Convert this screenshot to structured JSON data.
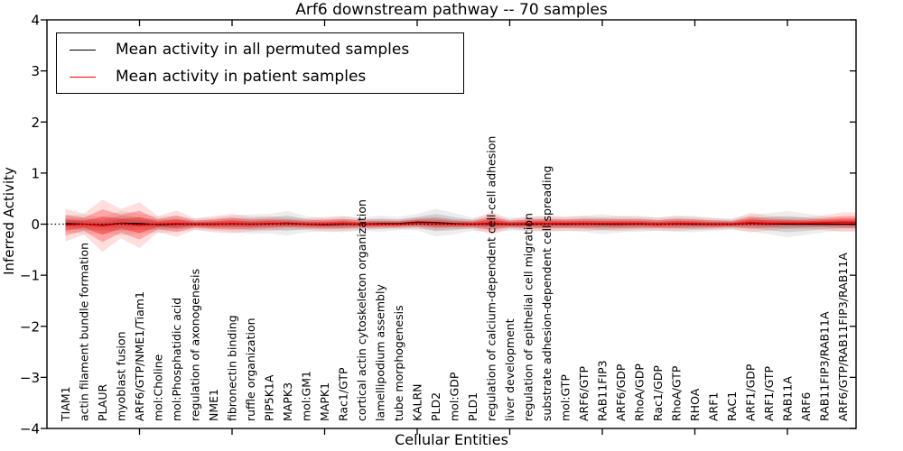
{
  "title": "Arf6 downstream pathway -- 70 samples",
  "legend": {
    "items": [
      {
        "label": "Mean activity in all permuted samples",
        "color": "#000000"
      },
      {
        "label": "Mean activity in patient samples",
        "color": "#ff0000"
      }
    ]
  },
  "colors": {
    "permuted_line": "#000000",
    "patient_line": "#ff0000",
    "permuted_band": "#000000",
    "patient_band": "#ff0000",
    "axis": "#000000",
    "background": "#ffffff"
  },
  "chart_data": {
    "type": "line",
    "title": "Arf6 downstream pathway -- 70 samples",
    "xlabel": "Cellular Entities",
    "ylabel": "Inferred Activity",
    "ylim": [
      -4,
      4
    ],
    "yticks": [
      4,
      3,
      2,
      1,
      0,
      -1,
      -2,
      -3,
      -4
    ],
    "xticks_major": [
      5,
      10,
      15,
      20,
      25,
      30,
      35,
      40
    ],
    "grid": false,
    "legend_position": "upper left",
    "zero_line": {
      "value": 0,
      "style": "dotted",
      "color": "#000000"
    },
    "categories": [
      "TIAM1",
      "actin filament bundle formation",
      "PLAUR",
      "myoblast fusion",
      "ARF6/GTP/NME1/Tiam1",
      "mol:Choline",
      "mol:Phosphatidic acid",
      "regulation of axonogenesis",
      "NME1",
      "fibronectin binding",
      "ruffle organization",
      "PIP5K1A",
      "MAPK3",
      "mol:GM1",
      "MAPK1",
      "Rac1/GTP",
      "cortical actin cytoskeleton organization",
      "lamellipodium assembly",
      "tube morphogenesis",
      "KALRN",
      "PLD2",
      "mol:GDP",
      "PLD1",
      "regulation of calcium-dependent cell-cell adhesion",
      "liver development",
      "regulation of epithelial cell migration",
      "substrate adhesion-dependent cell spreading",
      "mol:GTP",
      "ARF6/GTP",
      "RAB11FIP3",
      "ARF6/GDP",
      "RhoA/GDP",
      "Rac1/GDP",
      "RhoA/GTP",
      "RHOA",
      "ARF1",
      "RAC1",
      "ARF1/GDP",
      "ARF1/GTP",
      "RAB11A",
      "ARF6",
      "RAB11FIP3/RAB11A",
      "ARF6/GTP/RAB11FIP3/RAB11A"
    ],
    "series": [
      {
        "name": "Mean activity in all permuted samples",
        "style": "solid",
        "values": [
          0.01,
          0.0,
          -0.02,
          0.02,
          0.01,
          -0.01,
          0.0,
          0.0,
          0.0,
          0.01,
          0.0,
          0.01,
          0.02,
          0.0,
          -0.01,
          0.0,
          0.0,
          0.01,
          0.01,
          0.04,
          0.03,
          0.01,
          0.0,
          0.01,
          0.0,
          0.0,
          0.01,
          0.0,
          0.01,
          0.0,
          0.0,
          0.01,
          0.0,
          0.01,
          0.0,
          0.0,
          0.0,
          0.02,
          0.01,
          0.0,
          0.0,
          0.0,
          0.0
        ],
        "band_halfwidth": [
          0.1,
          0.12,
          0.1,
          0.15,
          0.12,
          0.1,
          0.1,
          0.07,
          0.08,
          0.1,
          0.12,
          0.12,
          0.15,
          0.1,
          0.08,
          0.1,
          0.08,
          0.1,
          0.08,
          0.1,
          0.17,
          0.13,
          0.08,
          0.1,
          0.08,
          0.08,
          0.1,
          0.08,
          0.1,
          0.12,
          0.1,
          0.1,
          0.08,
          0.1,
          0.1,
          0.08,
          0.07,
          0.1,
          0.13,
          0.16,
          0.13,
          0.1,
          0.08
        ]
      },
      {
        "name": "Mean activity in patient samples",
        "style": "solid",
        "values": [
          -0.02,
          0.0,
          -0.03,
          0.01,
          -0.02,
          0.0,
          0.01,
          0.0,
          0.0,
          0.01,
          0.0,
          0.01,
          0.01,
          0.0,
          0.0,
          0.01,
          0.0,
          0.0,
          0.0,
          0.02,
          0.01,
          0.0,
          0.0,
          0.02,
          0.0,
          0.01,
          0.01,
          0.01,
          0.01,
          0.01,
          0.01,
          0.01,
          0.0,
          0.01,
          0.01,
          0.0,
          0.0,
          0.03,
          0.02,
          0.02,
          0.02,
          0.03,
          0.04
        ],
        "band_halfwidth": [
          0.2,
          0.13,
          0.32,
          0.18,
          0.28,
          0.1,
          0.16,
          0.07,
          0.1,
          0.12,
          0.09,
          0.09,
          0.07,
          0.07,
          0.09,
          0.09,
          0.07,
          0.06,
          0.06,
          0.07,
          0.08,
          0.06,
          0.06,
          0.14,
          0.06,
          0.09,
          0.09,
          0.09,
          0.09,
          0.08,
          0.09,
          0.08,
          0.08,
          0.09,
          0.08,
          0.07,
          0.06,
          0.12,
          0.09,
          0.07,
          0.07,
          0.09,
          0.12
        ]
      }
    ]
  }
}
